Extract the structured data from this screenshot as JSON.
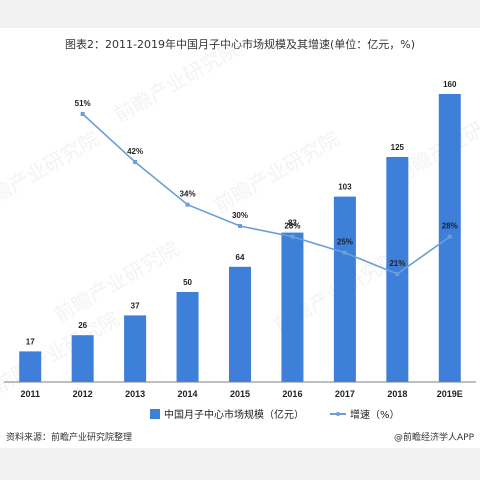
{
  "chart_data": {
    "type": "bar",
    "title": "图表2：2011-2019年中国月子中心市场规模及其增速(单位：亿元，%)",
    "categories": [
      "2011",
      "2012",
      "2013",
      "2014",
      "2015",
      "2016",
      "2017",
      "2018",
      "2019E"
    ],
    "series": [
      {
        "name": "中国月子中心市场规模（亿元）",
        "type": "bar",
        "values": [
          17,
          26,
          37,
          50,
          64,
          83,
          103,
          125,
          160
        ],
        "value_labels": [
          "17",
          "26",
          "37",
          "50",
          "64",
          "83",
          "103",
          "125",
          "160"
        ],
        "color": "#3d7fd9"
      },
      {
        "name": "增速（%）",
        "type": "line",
        "values": [
          null,
          51,
          42,
          34,
          30,
          28,
          25,
          21,
          28
        ],
        "value_labels": [
          "",
          "51%",
          "42%",
          "34%",
          "30%",
          "28%",
          "25%",
          "21%",
          "28%"
        ],
        "color": "#6a9fd8"
      }
    ],
    "ylim_bar": [
      0,
      160
    ],
    "ylim_line": [
      18,
      54
    ],
    "grid": false,
    "legend_position": "bottom"
  },
  "watermark_text": "前瞻产业研究院",
  "footer": {
    "source": "资料来源：前瞻产业研究院整理",
    "brand": "@前瞻经济学人APP"
  }
}
